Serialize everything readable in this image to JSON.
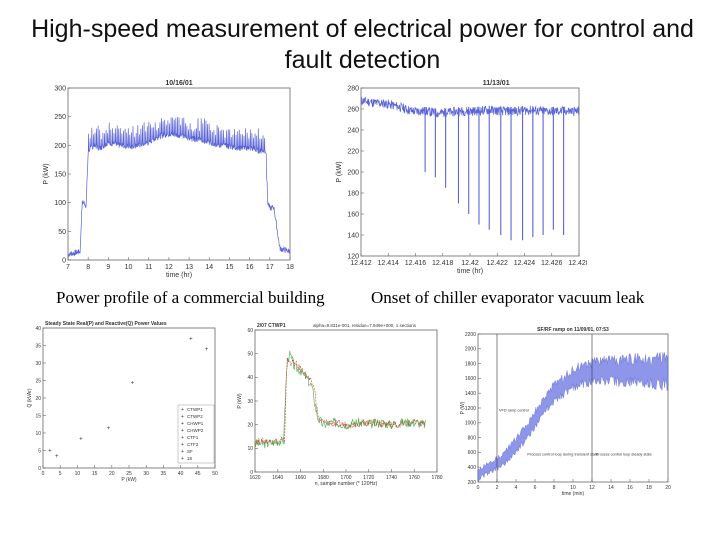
{
  "title": "High-speed measurement of electrical power for control and fault detection",
  "captions": {
    "left": "Power profile of a commercial building",
    "right": "Onset of chiller evaporator vacuum leak"
  },
  "colors": {
    "trace": "#5a64d8",
    "green": "#3cb04a",
    "red": "#d8453c",
    "axis": "#555555"
  },
  "chart_data": [
    {
      "id": "building-profile",
      "type": "line",
      "title": "10/16/01",
      "xlabel": "time (hr)",
      "ylabel": "P (kW)",
      "xlim": [
        7,
        18
      ],
      "ylim": [
        0,
        300
      ],
      "xticks": [
        "7",
        "8",
        "9",
        "10",
        "11",
        "12",
        "13",
        "14",
        "15",
        "16",
        "17",
        "18"
      ],
      "yticks": [
        "0",
        "50",
        "100",
        "150",
        "200",
        "250",
        "300"
      ],
      "series": [
        {
          "x": [
            7.0,
            7.3,
            7.6,
            7.7,
            7.8,
            7.9,
            8.0,
            8.3,
            8.6,
            9.0,
            9.5,
            10.0,
            10.5,
            11.0,
            11.5,
            12.0,
            12.5,
            13.0,
            13.5,
            14.0,
            14.5,
            15.0,
            15.5,
            16.0,
            16.5,
            16.8,
            16.9,
            17.0,
            17.2,
            17.5,
            18.0
          ],
          "values": [
            10,
            12,
            15,
            100,
            100,
            95,
            190,
            200,
            195,
            205,
            200,
            198,
            200,
            205,
            215,
            220,
            218,
            212,
            210,
            205,
            200,
            198,
            195,
            195,
            190,
            190,
            100,
            90,
            92,
            20,
            15
          ]
        }
      ]
    },
    {
      "id": "chiller-leak",
      "type": "line",
      "title": "11/13/01",
      "xlabel": "time (hr)",
      "ylabel": "P (kW)",
      "xlim": [
        12.412,
        12.429
      ],
      "ylim": [
        120,
        280
      ],
      "xticks": [
        "12.412",
        "12.414",
        "12.416",
        "12.418",
        "12.42",
        "12.422",
        "12.424",
        "12.426",
        "12.428"
      ],
      "yticks": [
        "120",
        "140",
        "160",
        "180",
        "200",
        "220",
        "240",
        "260",
        "280"
      ],
      "series": [
        {
          "x": [
            12.412,
            12.413,
            12.414,
            12.415,
            12.416,
            12.417,
            12.418,
            12.419,
            12.42,
            12.421,
            12.422,
            12.423,
            12.424,
            12.425,
            12.426,
            12.427,
            12.428,
            12.429
          ],
          "values": [
            268,
            266,
            265,
            262,
            258,
            258,
            256,
            257,
            258,
            258,
            259,
            258,
            258,
            259,
            258,
            258,
            258,
            258
          ],
          "spikes": [
            {
              "x": 12.417,
              "low": 200
            },
            {
              "x": 12.4178,
              "low": 195
            },
            {
              "x": 12.4186,
              "low": 185
            },
            {
              "x": 12.4196,
              "low": 170
            },
            {
              "x": 12.4204,
              "low": 160
            },
            {
              "x": 12.4212,
              "low": 150
            },
            {
              "x": 12.422,
              "low": 145
            },
            {
              "x": 12.4229,
              "low": 140
            },
            {
              "x": 12.4237,
              "low": 135
            },
            {
              "x": 12.4246,
              "low": 135
            },
            {
              "x": 12.4254,
              "low": 138
            },
            {
              "x": 12.4262,
              "low": 140
            },
            {
              "x": 12.427,
              "low": 145
            },
            {
              "x": 12.4278,
              "low": 140
            }
          ]
        }
      ]
    },
    {
      "id": "steady-state",
      "type": "scatter",
      "title": "Steady State Real(P) and Reactive(Q) Power Values",
      "xlabel": "P (kW)",
      "ylabel": "Q (kVAr)",
      "xlim": [
        0,
        50
      ],
      "ylim": [
        0,
        40
      ],
      "xticks": [
        "0",
        "5",
        "10",
        "15",
        "20",
        "25",
        "30",
        "35",
        "40",
        "45",
        "50"
      ],
      "yticks": [
        "0",
        "5",
        "10",
        "15",
        "20",
        "25",
        "30",
        "35",
        "40"
      ],
      "legend": [
        "CTWP1",
        "CTWP2",
        "CHWP1",
        "CHWP2",
        "CTF1",
        "CTF2",
        "SF",
        "18"
      ],
      "legend_position": "bottom-right",
      "points": [
        {
          "x": 2.0,
          "y": 5.0
        },
        {
          "x": 4.0,
          "y": 3.5
        },
        {
          "x": 11.0,
          "y": 8.5
        },
        {
          "x": 19.0,
          "y": 11.5
        },
        {
          "x": 26.0,
          "y": 24.5
        },
        {
          "x": 43.0,
          "y": 37.0
        },
        {
          "x": 47.5,
          "y": 34.0
        }
      ]
    },
    {
      "id": "ctwp1-startup",
      "type": "line",
      "title": "2/07 CTWP1",
      "subtitle": "alpha=9.831e-001, residue=7.949e+000, 1 sections",
      "xlabel": "n, sample number (* 120Hz)",
      "ylabel": "P (kW)",
      "xlim": [
        1620,
        1780
      ],
      "ylim": [
        0,
        60
      ],
      "xticks": [
        "1620",
        "1640",
        "1660",
        "1680",
        "1700",
        "1720",
        "1740",
        "1760",
        "1780"
      ],
      "yticks": [
        "0",
        "10",
        "20",
        "30",
        "40",
        "50",
        "60"
      ],
      "series": [
        {
          "name": "measured",
          "color": "green",
          "x": [
            1620,
            1630,
            1640,
            1645,
            1648,
            1650,
            1652,
            1655,
            1660,
            1665,
            1670,
            1675,
            1680,
            1690,
            1700,
            1710,
            1720,
            1730,
            1740,
            1750,
            1760,
            1770
          ],
          "values": [
            12,
            12,
            13,
            13,
            45,
            50,
            48,
            44,
            43,
            40,
            36,
            23,
            20,
            21,
            20,
            21,
            20,
            21,
            20,
            21,
            21,
            20
          ]
        },
        {
          "name": "model",
          "color": "red",
          "x": [
            1620,
            1640,
            1646,
            1648,
            1655,
            1665,
            1672,
            1676,
            1680,
            1700,
            1720,
            1740,
            1760,
            1770
          ],
          "values": [
            13,
            13,
            13,
            47,
            46,
            41,
            36,
            22,
            21,
            20,
            21,
            20,
            21,
            20
          ]
        }
      ]
    },
    {
      "id": "sfrf-ramp",
      "type": "line",
      "title": "SF/RF ramp on 11/09/01, 07:53",
      "xlabel": "time (min)",
      "ylabel": "P (W)",
      "xlim": [
        0,
        20
      ],
      "ylim": [
        200,
        2200
      ],
      "xticks": [
        "0",
        "2",
        "4",
        "6",
        "8",
        "10",
        "12",
        "14",
        "16",
        "18",
        "20"
      ],
      "yticks": [
        "200",
        "400",
        "600",
        "800",
        "1000",
        "1200",
        "1400",
        "1600",
        "1800",
        "2000",
        "2200"
      ],
      "annotations": [
        "VFD ramp control",
        "Process control loop during transient state",
        "Process control loop steady state"
      ],
      "series": [
        {
          "x": [
            0,
            1,
            2,
            3,
            4,
            5,
            6,
            7,
            8,
            9,
            10,
            11,
            12,
            13,
            14,
            15,
            16,
            17,
            18,
            19,
            20
          ],
          "values": [
            300,
            380,
            450,
            550,
            700,
            850,
            1050,
            1250,
            1400,
            1500,
            1600,
            1650,
            1680,
            1700,
            1720,
            1690,
            1700,
            1710,
            1700,
            1690,
            1700
          ]
        }
      ]
    }
  ]
}
